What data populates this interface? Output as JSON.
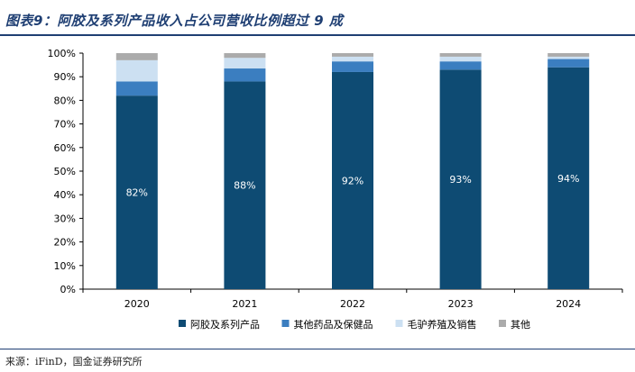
{
  "title": "图表9：阿胶及系列产品收入占公司营收比例超过 9 成",
  "source": "来源：iFinD，国金证券研究所",
  "chart_data": {
    "type": "bar",
    "stacked": true,
    "categories": [
      "2020",
      "2021",
      "2022",
      "2023",
      "2024"
    ],
    "series": [
      {
        "name": "阿胶及系列产品",
        "color": "#0e4b73",
        "values": [
          82,
          88,
          92,
          93,
          94
        ],
        "labels": [
          "82%",
          "88%",
          "92%",
          "93%",
          "94%"
        ]
      },
      {
        "name": "其他药品及保健品",
        "color": "#3b7ec0",
        "values": [
          6,
          5.5,
          4.5,
          3.5,
          3.5
        ]
      },
      {
        "name": "毛驴养殖及销售",
        "color": "#cce0f2",
        "values": [
          9,
          4.5,
          2,
          2,
          1
        ]
      },
      {
        "name": "其他",
        "color": "#ababab",
        "values": [
          3,
          2,
          1.5,
          1.5,
          1.5
        ]
      }
    ],
    "y_ticks": [
      "0%",
      "10%",
      "20%",
      "30%",
      "40%",
      "50%",
      "60%",
      "70%",
      "80%",
      "90%",
      "100%"
    ],
    "ylim": [
      0,
      100
    ],
    "legend_position": "bottom",
    "grid": false
  }
}
